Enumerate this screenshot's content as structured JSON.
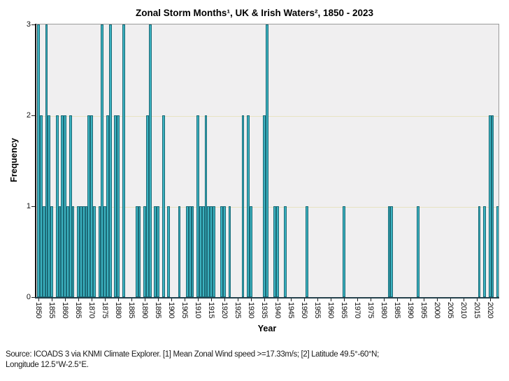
{
  "title": "Zonal Storm Months¹, UK & Irish Waters², 1850 - 2023",
  "x_axis_label": "Year",
  "y_axis_label": "Frequency",
  "footnote": {
    "line1": "Source: ICOADS 3 via KNMI Climate Explorer. [1] Mean Zonal Wind speed >=17.33m/s; [2] Latitude 49.5°-60°N;",
    "line2": "Longitude 12.5°W-2.5°E."
  },
  "colors": {
    "bar_fill": "#2fa9b8",
    "bar_highlight": "#4cc3d0",
    "bar_border": "#1b6a77",
    "plot_background": "#f0eff0",
    "gridline": "#e7e3c2",
    "plot_border": "#9a9a9a",
    "x_axis": "#24404b",
    "y_axis": "#111111",
    "text": "#000000"
  },
  "chart_data": {
    "type": "bar",
    "title": "Zonal Storm Months¹, UK & Irish Waters², 1850 - 2023",
    "xlabel": "Year",
    "ylabel": "Frequency",
    "xlim": [
      1849.5,
      2023.5
    ],
    "ylim": [
      0,
      3
    ],
    "x_tick_start": 1850,
    "x_tick_step": 5,
    "x_ticks": [
      1850,
      1855,
      1860,
      1865,
      1870,
      1875,
      1880,
      1885,
      1890,
      1895,
      1900,
      1905,
      1910,
      1915,
      1920,
      1925,
      1930,
      1935,
      1940,
      1945,
      1950,
      1955,
      1960,
      1965,
      1970,
      1975,
      1980,
      1985,
      1990,
      1995,
      2000,
      2005,
      2010,
      2015,
      2020
    ],
    "y_ticks": [
      0,
      1,
      2,
      3
    ],
    "gridlines_at": [
      1,
      2
    ],
    "legend": "none",
    "grid": "horizontal-only",
    "values_description": "frequency of zonal storm months per year; years not listed have frequency 0",
    "values": [
      [
        1850,
        3
      ],
      [
        1851,
        2
      ],
      [
        1852,
        1
      ],
      [
        1853,
        3
      ],
      [
        1854,
        2
      ],
      [
        1855,
        1
      ],
      [
        1857,
        2
      ],
      [
        1858,
        1
      ],
      [
        1859,
        2
      ],
      [
        1860,
        2
      ],
      [
        1861,
        1
      ],
      [
        1862,
        2
      ],
      [
        1863,
        1
      ],
      [
        1865,
        1
      ],
      [
        1866,
        1
      ],
      [
        1867,
        1
      ],
      [
        1868,
        1
      ],
      [
        1869,
        2
      ],
      [
        1870,
        2
      ],
      [
        1871,
        1
      ],
      [
        1873,
        1
      ],
      [
        1874,
        3
      ],
      [
        1875,
        1
      ],
      [
        1876,
        2
      ],
      [
        1877,
        3
      ],
      [
        1879,
        2
      ],
      [
        1880,
        2
      ],
      [
        1882,
        3
      ],
      [
        1887,
        1
      ],
      [
        1888,
        1
      ],
      [
        1890,
        1
      ],
      [
        1891,
        2
      ],
      [
        1892,
        3
      ],
      [
        1894,
        1
      ],
      [
        1895,
        1
      ],
      [
        1897,
        2
      ],
      [
        1899,
        1
      ],
      [
        1903,
        1
      ],
      [
        1906,
        1
      ],
      [
        1907,
        1
      ],
      [
        1908,
        1
      ],
      [
        1910,
        2
      ],
      [
        1911,
        1
      ],
      [
        1912,
        1
      ],
      [
        1913,
        2
      ],
      [
        1914,
        1
      ],
      [
        1915,
        1
      ],
      [
        1916,
        1
      ],
      [
        1919,
        1
      ],
      [
        1920,
        1
      ],
      [
        1922,
        1
      ],
      [
        1927,
        2
      ],
      [
        1929,
        2
      ],
      [
        1930,
        1
      ],
      [
        1935,
        2
      ],
      [
        1936,
        3
      ],
      [
        1939,
        1
      ],
      [
        1940,
        1
      ],
      [
        1943,
        1
      ],
      [
        1951,
        1
      ],
      [
        1965,
        1
      ],
      [
        1982,
        1
      ],
      [
        1983,
        1
      ],
      [
        1993,
        1
      ],
      [
        2016,
        1
      ],
      [
        2018,
        1
      ],
      [
        2020,
        2
      ],
      [
        2021,
        2
      ],
      [
        2023,
        1
      ]
    ]
  }
}
